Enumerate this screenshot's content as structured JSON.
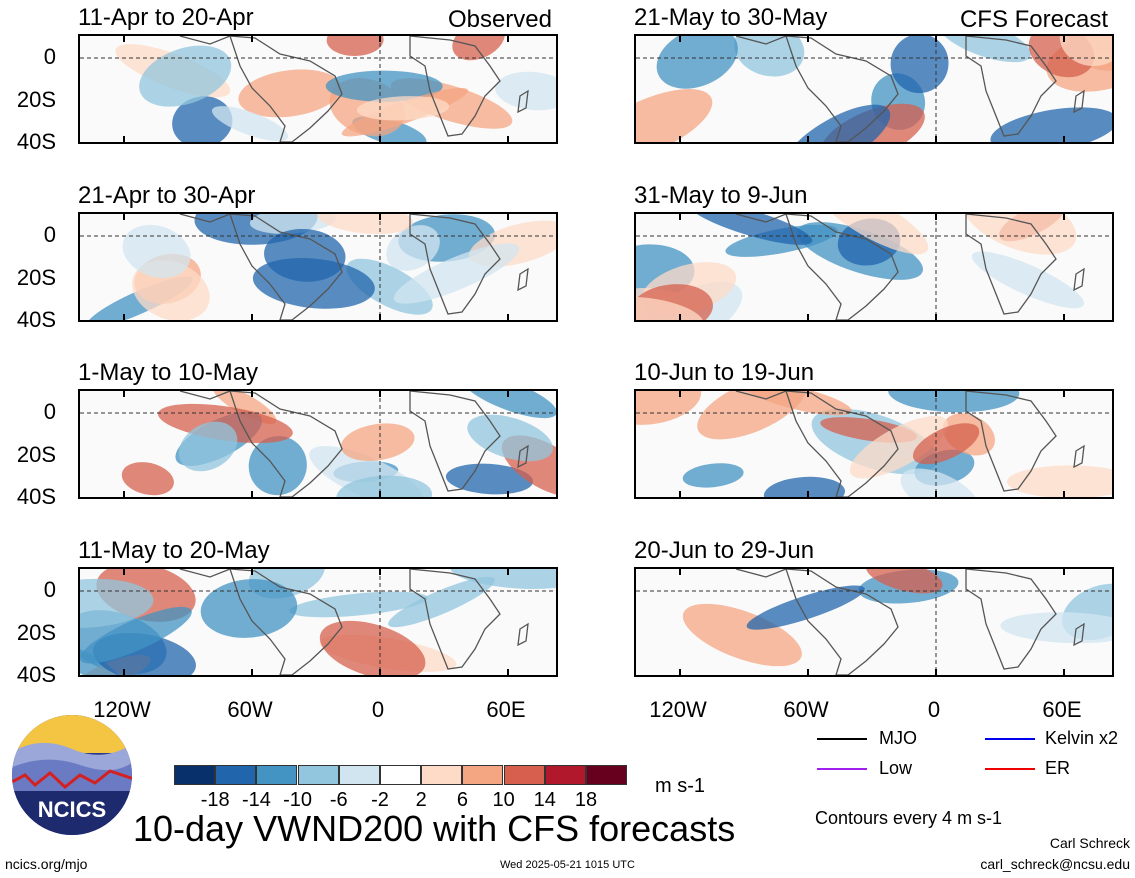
{
  "panels": [
    {
      "title": "11-Apr to 20-Apr",
      "tag": "Observed",
      "col": 0,
      "row": 0
    },
    {
      "title": "21-Apr to 30-Apr",
      "tag": "",
      "col": 0,
      "row": 1
    },
    {
      "title": "1-May to 10-May",
      "tag": "",
      "col": 0,
      "row": 2
    },
    {
      "title": "11-May to 20-May",
      "tag": "",
      "col": 0,
      "row": 3
    },
    {
      "title": "21-May to 30-May",
      "tag": "CFS Forecast",
      "col": 1,
      "row": 0
    },
    {
      "title": "31-May to 9-Jun",
      "tag": "",
      "col": 1,
      "row": 1
    },
    {
      "title": "10-Jun to 19-Jun",
      "tag": "",
      "col": 1,
      "row": 2
    },
    {
      "title": "20-Jun to 29-Jun",
      "tag": "",
      "col": 1,
      "row": 3
    }
  ],
  "y_ticks": [
    "0",
    "20S",
    "40S"
  ],
  "x_ticks": [
    "120W",
    "60W",
    "0",
    "60E"
  ],
  "colorbar": {
    "colors": [
      "#08306b",
      "#2166ac",
      "#4393c3",
      "#92c5de",
      "#d1e5f0",
      "#ffffff",
      "#fddbc7",
      "#f4a582",
      "#d6604d",
      "#b2182b",
      "#67001f"
    ],
    "labels": [
      "-18",
      "-14",
      "-10",
      "-6",
      "-2",
      "2",
      "6",
      "10",
      "14",
      "18"
    ],
    "units": "m s-1"
  },
  "legend": {
    "mjo": {
      "label": "MJO",
      "color": "#000000"
    },
    "kelvin": {
      "label": "Kelvin x2",
      "color": "#0000ee"
    },
    "low": {
      "label": "Low",
      "color": "#a020f0"
    },
    "er": {
      "label": "ER",
      "color": "#ee0000"
    }
  },
  "contour_note": "Contours every 4 m s-1",
  "main_title": "10-day VWND200 with CFS forecasts",
  "logo_text": "NCICS",
  "footer": {
    "url": "ncics.org/mjo",
    "timestamp": "Wed 2025-05-21 1015 UTC",
    "author": "Carl Schreck",
    "email": "carl_schreck@ncsu.edu"
  }
}
